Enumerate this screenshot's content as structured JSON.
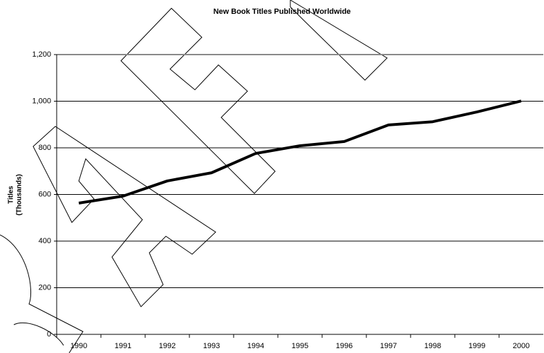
{
  "chart_data": {
    "type": "line",
    "title": "New Book Titles Published Worldwide",
    "y_label": [
      "Titles",
      "(Thousands)"
    ],
    "categories": [
      "1990",
      "1991",
      "1992",
      "1993",
      "1994",
      "1995",
      "1996",
      "1997",
      "1998",
      "1999",
      "2000"
    ],
    "values": [
      563,
      593,
      658,
      693,
      776,
      809,
      827,
      898,
      912,
      954,
      1001
    ],
    "color": "#000000",
    "ylim": [
      0,
      1200
    ],
    "yticks": [
      0,
      200,
      400,
      600,
      800,
      {
        "value": 1000,
        "label": "1,000"
      },
      {
        "value": 1200,
        "label": "1,200"
      }
    ],
    "grid": true
  }
}
